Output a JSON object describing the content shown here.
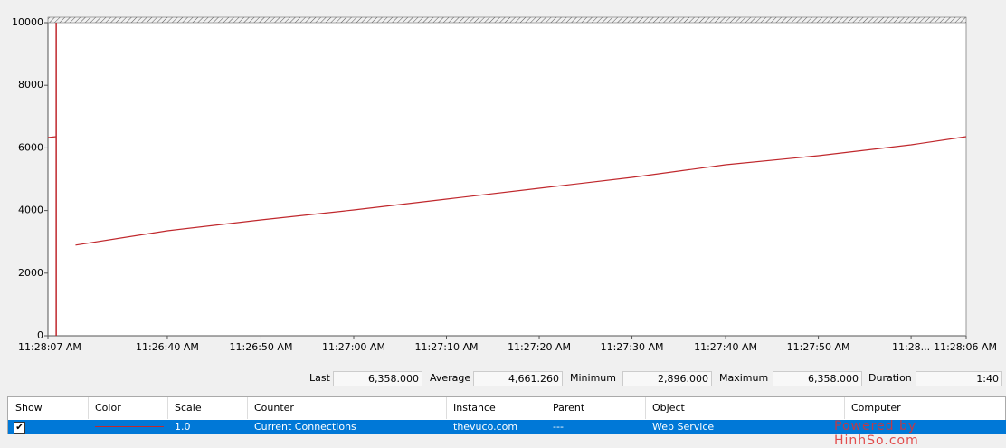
{
  "chart_data": {
    "type": "line",
    "x": [
      0,
      0.9,
      2,
      3,
      13,
      23.2,
      33.3,
      43.4,
      53.5,
      63.6,
      73.8,
      83.9,
      94,
      100
    ],
    "values": [
      6330,
      6358,
      null,
      2896,
      3353,
      3700,
      4017,
      4364,
      4711,
      5058,
      5462,
      5751,
      6098,
      6358
    ],
    "color": "#c0282d",
    "xlim": [
      0,
      100
    ],
    "xticks": [
      {
        "value": 0,
        "label": "11:28:07 AM"
      },
      {
        "value": 13,
        "label": "11:26:40 AM"
      },
      {
        "value": 23.2,
        "label": "11:26:50 AM"
      },
      {
        "value": 33.3,
        "label": "11:27:00 AM"
      },
      {
        "value": 43.4,
        "label": "11:27:10 AM"
      },
      {
        "value": 53.5,
        "label": "11:27:20 AM"
      },
      {
        "value": 63.6,
        "label": "11:27:30 AM"
      },
      {
        "value": 73.8,
        "label": "11:27:40 AM"
      },
      {
        "value": 83.9,
        "label": "11:27:50 AM"
      },
      {
        "value": 94,
        "label": "11:28..."
      },
      {
        "value": 100,
        "label": "11:28:06 AM"
      }
    ],
    "ylim": [
      0,
      10000
    ],
    "yticks": [
      0,
      2000,
      4000,
      6000,
      8000,
      10000
    ]
  },
  "stats": [
    {
      "label": "Last",
      "value": "6,358.000"
    },
    {
      "label": "Average",
      "value": "4,661.260"
    },
    {
      "label": "Minimum",
      "value": "2,896.000"
    },
    {
      "label": "Maximum",
      "value": "6,358.000"
    },
    {
      "label": "Duration",
      "value": "1:40"
    }
  ],
  "table": {
    "headers": [
      "Show",
      "Color",
      "Scale",
      "Counter",
      "Instance",
      "Parent",
      "Object",
      "Computer"
    ],
    "rows": [
      [
        "1.0",
        "Current Connections",
        "thevuco.com",
        "---",
        "Web Service"
      ]
    ]
  },
  "watermark": "Powered by HinhSo.com"
}
